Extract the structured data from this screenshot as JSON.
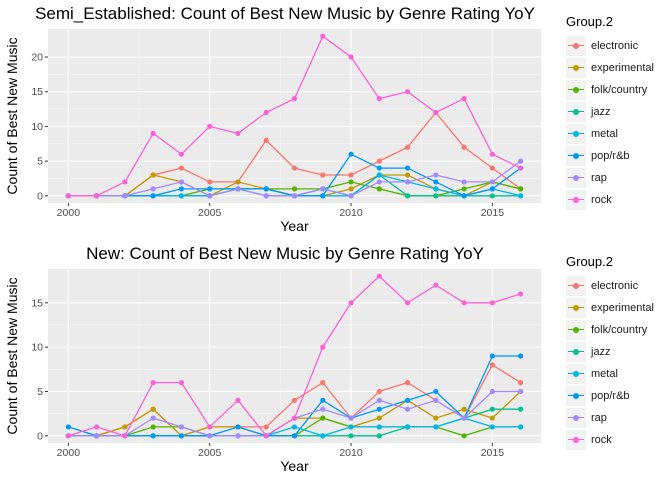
{
  "chart_data": [
    {
      "type": "line",
      "title": "Semi_Established: Count of Best New Music by Genre Rating YoY",
      "xlabel": "Year",
      "ylabel": "Count of Best New Music",
      "xlim": [
        2000,
        2016
      ],
      "ylim": [
        0,
        23
      ],
      "xticks": [
        "2000",
        "2005",
        "2010",
        "2015"
      ],
      "yticks": [
        "0",
        "5",
        "10",
        "15",
        "20"
      ],
      "legend_title": "Group.2",
      "legend_position": "right",
      "x": [
        2000,
        2001,
        2002,
        2003,
        2004,
        2005,
        2006,
        2007,
        2008,
        2009,
        2010,
        2011,
        2012,
        2013,
        2014,
        2015,
        2016
      ],
      "series": [
        {
          "name": "electronic",
          "color": "#F8766D",
          "values": [
            0,
            0,
            0,
            3,
            4,
            2,
            2,
            8,
            4,
            3,
            3,
            5,
            7,
            12,
            7,
            4,
            1
          ]
        },
        {
          "name": "experimental",
          "color": "#C49A00",
          "values": [
            0,
            0,
            0,
            3,
            2,
            0,
            2,
            1,
            0,
            0,
            1,
            3,
            3,
            1,
            0,
            2,
            1
          ]
        },
        {
          "name": "folk/country",
          "color": "#53B400",
          "values": [
            0,
            0,
            0,
            0,
            0,
            1,
            1,
            1,
            1,
            1,
            2,
            1,
            0,
            0,
            1,
            2,
            1
          ]
        },
        {
          "name": "jazz",
          "color": "#00C094",
          "values": [
            0,
            0,
            0,
            0,
            0,
            0,
            1,
            1,
            0,
            1,
            0,
            3,
            0,
            0,
            0,
            0,
            0
          ]
        },
        {
          "name": "metal",
          "color": "#00B6EB",
          "values": [
            0,
            0,
            0,
            0,
            0,
            0,
            1,
            0,
            0,
            0,
            0,
            3,
            2,
            1,
            0,
            1,
            0
          ]
        },
        {
          "name": "pop/r&b",
          "color": "#0099F8",
          "values": [
            0,
            0,
            0,
            0,
            1,
            1,
            1,
            1,
            0,
            0,
            6,
            4,
            4,
            2,
            0,
            1,
            4
          ]
        },
        {
          "name": "rap",
          "color": "#A58AFF",
          "values": [
            0,
            0,
            0,
            1,
            2,
            0,
            1,
            0,
            0,
            1,
            0,
            2,
            2,
            3,
            2,
            2,
            5
          ]
        },
        {
          "name": "rock",
          "color": "#FB61D7",
          "values": [
            0,
            0,
            2,
            9,
            6,
            10,
            9,
            12,
            14,
            23,
            20,
            14,
            15,
            12,
            14,
            6,
            4
          ]
        }
      ]
    },
    {
      "type": "line",
      "title": "New: Count of Best New Music by Genre Rating YoY",
      "xlabel": "Year",
      "ylabel": "Count of Best New Music",
      "xlim": [
        2000,
        2016
      ],
      "ylim": [
        0,
        18
      ],
      "xticks": [
        "2000",
        "2005",
        "2010",
        "2015"
      ],
      "yticks": [
        "0",
        "5",
        "10",
        "15"
      ],
      "legend_title": "Group.2",
      "legend_position": "right",
      "x": [
        2000,
        2001,
        2002,
        2003,
        2004,
        2005,
        2006,
        2007,
        2008,
        2009,
        2010,
        2011,
        2012,
        2013,
        2014,
        2015,
        2016
      ],
      "series": [
        {
          "name": "electronic",
          "color": "#F8766D",
          "values": [
            0,
            0,
            1,
            3,
            0,
            1,
            1,
            1,
            4,
            6,
            2,
            5,
            6,
            4,
            2,
            8,
            6
          ]
        },
        {
          "name": "experimental",
          "color": "#C49A00",
          "values": [
            0,
            0,
            1,
            3,
            0,
            1,
            1,
            0,
            2,
            2,
            1,
            2,
            4,
            2,
            3,
            2,
            5
          ]
        },
        {
          "name": "folk/country",
          "color": "#53B400",
          "values": [
            0,
            0,
            0,
            1,
            1,
            0,
            0,
            0,
            0,
            2,
            1,
            1,
            1,
            1,
            0,
            1,
            1
          ]
        },
        {
          "name": "jazz",
          "color": "#00C094",
          "values": [
            0,
            0,
            0,
            0,
            0,
            0,
            0,
            0,
            0,
            0,
            0,
            0,
            1,
            1,
            2,
            3,
            3
          ]
        },
        {
          "name": "metal",
          "color": "#00B6EB",
          "values": [
            0,
            0,
            0,
            0,
            0,
            0,
            0,
            0,
            1,
            0,
            1,
            1,
            1,
            1,
            2,
            1,
            1
          ]
        },
        {
          "name": "pop/r&b",
          "color": "#0099F8",
          "values": [
            1,
            0,
            0,
            0,
            0,
            0,
            1,
            0,
            0,
            4,
            2,
            3,
            4,
            5,
            2,
            9,
            9
          ]
        },
        {
          "name": "rap",
          "color": "#A58AFF",
          "values": [
            0,
            0,
            0,
            2,
            1,
            0,
            0,
            0,
            2,
            3,
            2,
            4,
            3,
            4,
            2,
            5,
            5
          ]
        },
        {
          "name": "rock",
          "color": "#FB61D7",
          "values": [
            0,
            1,
            0,
            6,
            6,
            1,
            4,
            0,
            2,
            10,
            15,
            18,
            15,
            17,
            15,
            15,
            16
          ]
        }
      ]
    }
  ]
}
